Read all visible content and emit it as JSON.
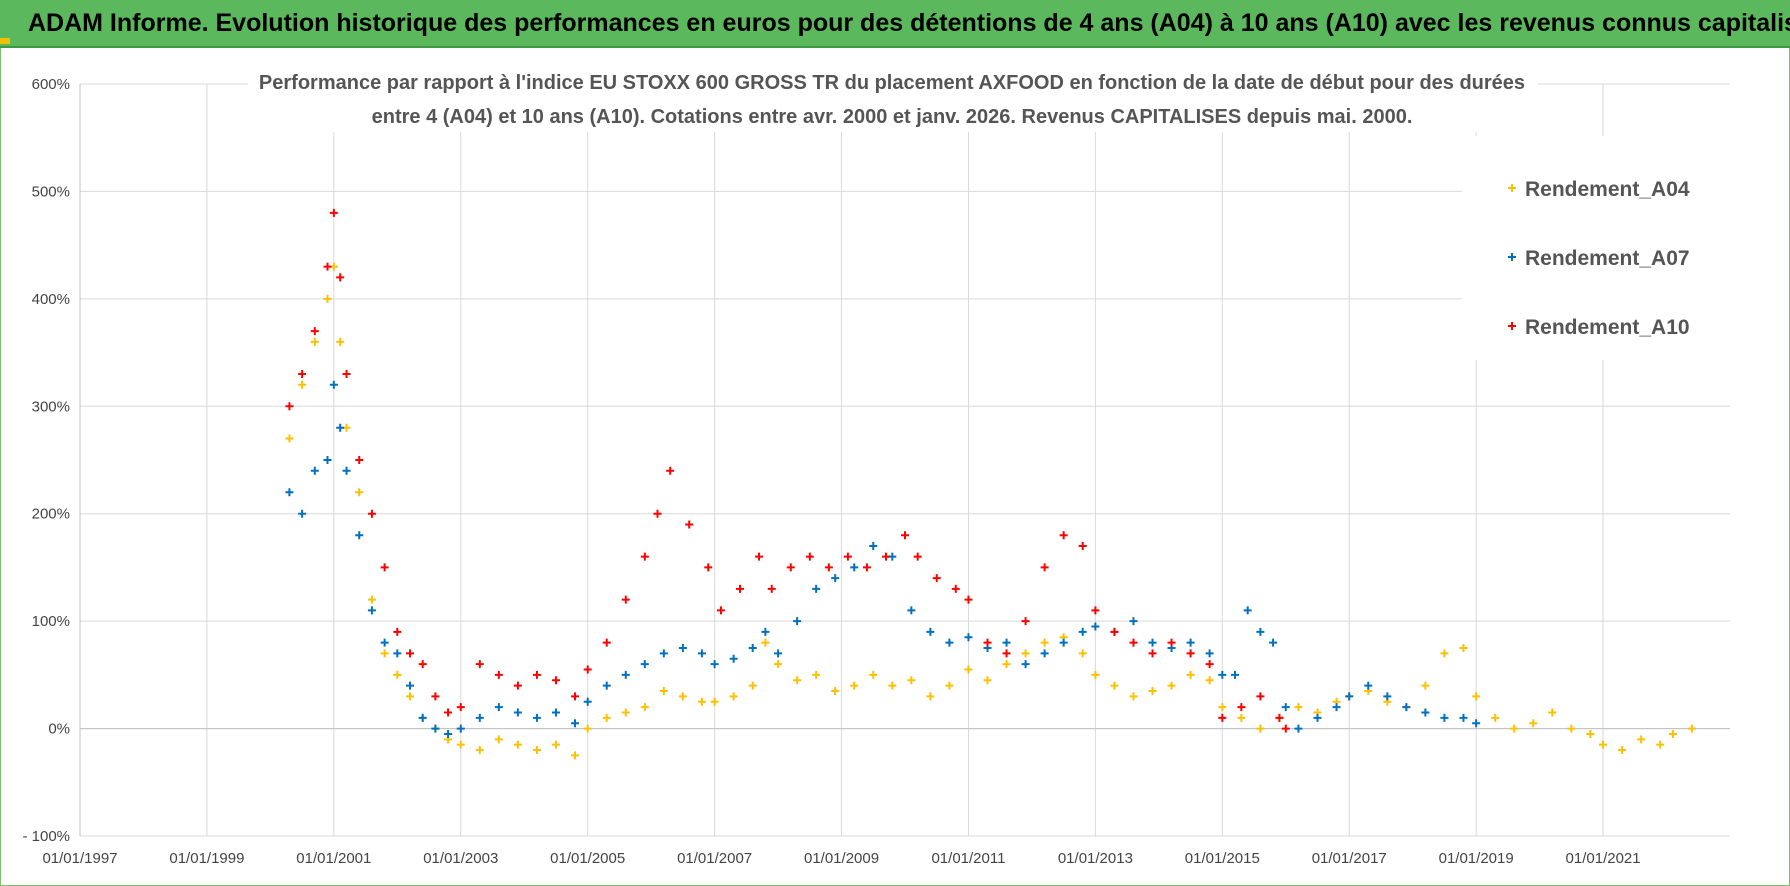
{
  "header": {
    "banner_title": "ADAM Informe. Evolution historique des performances en euros pour des détentions de 4 ans (A04) à 10 ans (A10) avec les revenus connus capitalisés"
  },
  "colors": {
    "banner": "#5cb85c",
    "A04": "#ffc000",
    "A07": "#0070c0",
    "A10": "#ff0000",
    "grid": "#d9d9d9"
  },
  "chart_data": {
    "type": "scatter",
    "title_line1": "Performance par rapport à l'indice EU STOXX 600 GROSS TR  du placement AXFOOD en fonction de la date de début pour des durées",
    "title_line2": "entre 4 (A04) et 10 ans (A10).  Cotations entre avr. 2000 et janv. 2026. Revenus CAPITALISES depuis mai. 2000.",
    "xlabel": "",
    "ylabel": "",
    "xlim": [
      1997.0,
      2023.0
    ],
    "ylim": [
      -100,
      600
    ],
    "x_ticks": [
      1997,
      1999,
      2001,
      2003,
      2005,
      2007,
      2009,
      2011,
      2013,
      2015,
      2017,
      2019,
      2021
    ],
    "x_tick_labels": [
      "01/01/1997",
      "01/01/1999",
      "01/01/2001",
      "01/01/2003",
      "01/01/2005",
      "01/01/2007",
      "01/01/2009",
      "01/01/2011",
      "01/01/2013",
      "01/01/2015",
      "01/01/2017",
      "01/01/2019",
      "01/01/2021"
    ],
    "y_ticks": [
      -100,
      0,
      100,
      200,
      300,
      400,
      500,
      600
    ],
    "y_tick_labels": [
      "- 100%",
      "0%",
      "100%",
      "200%",
      "300%",
      "400%",
      "500%",
      "600%"
    ],
    "legend_position": "top-right",
    "series": [
      {
        "name": "Rendement_A04",
        "x": [
          2000.3,
          2000.5,
          2000.7,
          2000.9,
          2001.0,
          2001.1,
          2001.2,
          2001.4,
          2001.6,
          2001.8,
          2002.0,
          2002.2,
          2002.4,
          2002.6,
          2002.8,
          2003.0,
          2003.3,
          2003.6,
          2003.9,
          2004.2,
          2004.5,
          2004.8,
          2005.0,
          2005.3,
          2005.6,
          2005.9,
          2006.2,
          2006.5,
          2006.8,
          2007.0,
          2007.3,
          2007.6,
          2007.8,
          2008.0,
          2008.3,
          2008.6,
          2008.9,
          2009.2,
          2009.5,
          2009.8,
          2010.1,
          2010.4,
          2010.7,
          2011.0,
          2011.3,
          2011.6,
          2011.9,
          2012.2,
          2012.5,
          2012.8,
          2013.0,
          2013.3,
          2013.6,
          2013.9,
          2014.2,
          2014.5,
          2014.8,
          2015.0,
          2015.3,
          2015.6,
          2015.9,
          2016.2,
          2016.5,
          2016.8,
          2017.0,
          2017.3,
          2017.6,
          2017.9,
          2018.2,
          2018.5,
          2018.8,
          2019.0,
          2019.3,
          2019.6,
          2019.9,
          2020.2,
          2020.5,
          2020.8,
          2021.0,
          2021.3,
          2021.6,
          2021.9,
          2022.1,
          2022.4
        ],
        "y": [
          270,
          320,
          360,
          400,
          430,
          360,
          280,
          220,
          120,
          70,
          50,
          30,
          10,
          0,
          -10,
          -15,
          -20,
          -10,
          -15,
          -20,
          -15,
          -25,
          0,
          10,
          15,
          20,
          35,
          30,
          25,
          25,
          30,
          40,
          80,
          60,
          45,
          50,
          35,
          40,
          50,
          40,
          45,
          30,
          40,
          55,
          45,
          60,
          70,
          80,
          85,
          70,
          50,
          40,
          30,
          35,
          40,
          50,
          45,
          20,
          10,
          0,
          10,
          20,
          15,
          25,
          30,
          35,
          25,
          20,
          40,
          70,
          75,
          30,
          10,
          0,
          5,
          15,
          0,
          -5,
          -15,
          -20,
          -10,
          -15,
          -5,
          0
        ]
      },
      {
        "name": "Rendement_A07",
        "x": [
          2000.3,
          2000.5,
          2000.7,
          2000.9,
          2001.0,
          2001.1,
          2001.2,
          2001.4,
          2001.6,
          2001.8,
          2002.0,
          2002.2,
          2002.4,
          2002.6,
          2002.8,
          2003.0,
          2003.3,
          2003.6,
          2003.9,
          2004.2,
          2004.5,
          2004.8,
          2005.0,
          2005.3,
          2005.6,
          2005.9,
          2006.2,
          2006.5,
          2006.8,
          2007.0,
          2007.3,
          2007.6,
          2007.8,
          2008.0,
          2008.3,
          2008.6,
          2008.9,
          2009.2,
          2009.5,
          2009.8,
          2010.1,
          2010.4,
          2010.7,
          2011.0,
          2011.3,
          2011.6,
          2011.9,
          2012.2,
          2012.5,
          2012.8,
          2013.0,
          2013.3,
          2013.6,
          2013.9,
          2014.2,
          2014.5,
          2014.8,
          2015.0,
          2015.2,
          2015.4,
          2015.6,
          2015.8,
          2016.0,
          2016.2,
          2016.5,
          2016.8,
          2017.0,
          2017.3,
          2017.6,
          2017.9,
          2018.2,
          2018.5,
          2018.8,
          2019.0
        ],
        "y": [
          220,
          200,
          240,
          250,
          320,
          280,
          240,
          180,
          110,
          80,
          70,
          40,
          10,
          0,
          -5,
          0,
          10,
          20,
          15,
          10,
          15,
          5,
          25,
          40,
          50,
          60,
          70,
          75,
          70,
          60,
          65,
          75,
          90,
          70,
          100,
          130,
          140,
          150,
          170,
          160,
          110,
          90,
          80,
          85,
          75,
          80,
          60,
          70,
          80,
          90,
          95,
          90,
          100,
          80,
          75,
          80,
          70,
          50,
          50,
          110,
          90,
          80,
          20,
          0,
          10,
          20,
          30,
          40,
          30,
          20,
          15,
          10,
          10,
          5
        ]
      },
      {
        "name": "Rendement_A10",
        "x": [
          2000.3,
          2000.5,
          2000.7,
          2000.9,
          2001.0,
          2001.1,
          2001.2,
          2001.4,
          2001.6,
          2001.8,
          2002.0,
          2002.2,
          2002.4,
          2002.6,
          2002.8,
          2003.0,
          2003.3,
          2003.6,
          2003.9,
          2004.2,
          2004.5,
          2004.8,
          2005.0,
          2005.3,
          2005.6,
          2005.9,
          2006.1,
          2006.3,
          2006.6,
          2006.9,
          2007.1,
          2007.4,
          2007.7,
          2007.9,
          2008.2,
          2008.5,
          2008.8,
          2009.1,
          2009.4,
          2009.7,
          2010.0,
          2010.2,
          2010.5,
          2010.8,
          2011.0,
          2011.3,
          2011.6,
          2011.9,
          2012.2,
          2012.5,
          2012.8,
          2013.0,
          2013.3,
          2013.6,
          2013.9,
          2014.2,
          2014.5,
          2014.8,
          2015.0,
          2015.3,
          2015.6,
          2015.9,
          2016.0
        ],
        "y": [
          300,
          330,
          370,
          430,
          480,
          420,
          330,
          250,
          200,
          150,
          90,
          70,
          60,
          30,
          15,
          20,
          60,
          50,
          40,
          50,
          45,
          30,
          55,
          80,
          120,
          160,
          200,
          240,
          190,
          150,
          110,
          130,
          160,
          130,
          150,
          160,
          150,
          160,
          150,
          160,
          180,
          160,
          140,
          130,
          120,
          80,
          70,
          100,
          150,
          180,
          170,
          110,
          90,
          80,
          70,
          80,
          70,
          60,
          10,
          20,
          30,
          10,
          0
        ]
      }
    ]
  }
}
